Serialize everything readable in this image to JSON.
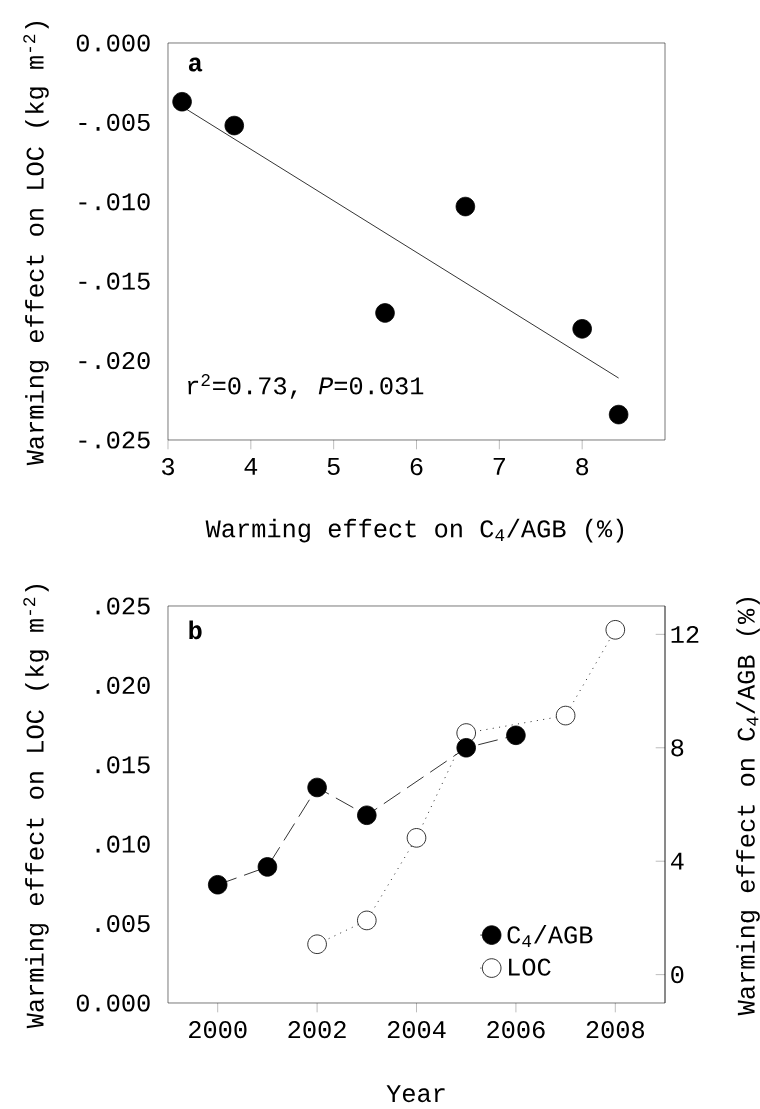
{
  "chart_data": [
    {
      "type": "scatter",
      "title": "a",
      "xlabel": "Warming effect on C$_{4}$/AGB (%)",
      "ylabel": "Warming effect on LOC (kg m$^{-2}$)",
      "annotations": [
        "r$^{2}$=0.73, *P*=0.031"
      ],
      "xlim": [
        3,
        9
      ],
      "xticks": [
        3,
        4,
        5,
        6,
        7,
        8
      ],
      "ylim": [
        -0.025,
        0
      ],
      "yticks": [
        {
          "value": -0.025,
          "label": "-.025"
        },
        {
          "value": -0.02,
          "label": "-.020"
        },
        {
          "value": -0.015,
          "label": "-.015"
        },
        {
          "value": -0.01,
          "label": "-.010"
        },
        {
          "value": -0.005,
          "label": "-.005"
        },
        {
          "value": 0,
          "label": "0.000"
        }
      ],
      "marker": "circle",
      "series": [
        {
          "color": "#000000",
          "x": [
            3.17,
            3.8,
            5.62,
            6.59,
            8.0,
            8.44
          ],
          "values": [
            -0.0037,
            -0.0052,
            -0.017,
            -0.0103,
            -0.018,
            -0.0234
          ]
        },
        {
          "type": "line",
          "marker": "none",
          "color": "#000000",
          "x": [
            3.17,
            8.44
          ],
          "values": [
            -0.004,
            -0.0211
          ]
        }
      ]
    },
    {
      "type": "line",
      "title": "b",
      "xlabel": "Year",
      "ylabel": "Warming effect on LOC (kg m$^{-2}$)",
      "y2label": "Warming effect on C$_{4}$/AGB (%)",
      "xlim": [
        1999,
        2009
      ],
      "xticks": [
        2000,
        2002,
        2004,
        2006,
        2008
      ],
      "ylim": [
        0,
        0.025
      ],
      "yticks": [
        {
          "value": 0,
          "label": "0.000"
        },
        {
          "value": 0.005,
          "label": ".005"
        },
        {
          "value": 0.01,
          "label": ".010"
        },
        {
          "value": 0.015,
          "label": ".015"
        },
        {
          "value": 0.02,
          "label": ".020"
        },
        {
          "value": 0.025,
          "label": ".025"
        }
      ],
      "y2lim": [
        -1,
        13
      ],
      "y2ticks": [
        0,
        4,
        8,
        12
      ],
      "legend": "bottom right",
      "marker": "circle",
      "series": [
        {
          "name": "C$_{4}$/AGB",
          "axis": "y2",
          "line_style": "dashed",
          "color": "#000000",
          "x": [
            2000,
            2001,
            2002,
            2003,
            2005,
            2006
          ],
          "values": [
            3.17,
            3.8,
            6.6,
            5.62,
            8.0,
            8.44
          ]
        },
        {
          "name": "LOC",
          "line_style": "dotted",
          "color": "#ffffff",
          "x": [
            2002,
            2003,
            2004,
            2005,
            2007,
            2008
          ],
          "values": [
            0.0037,
            0.0052,
            0.0104,
            0.017,
            0.0181,
            0.0235
          ]
        }
      ]
    }
  ]
}
